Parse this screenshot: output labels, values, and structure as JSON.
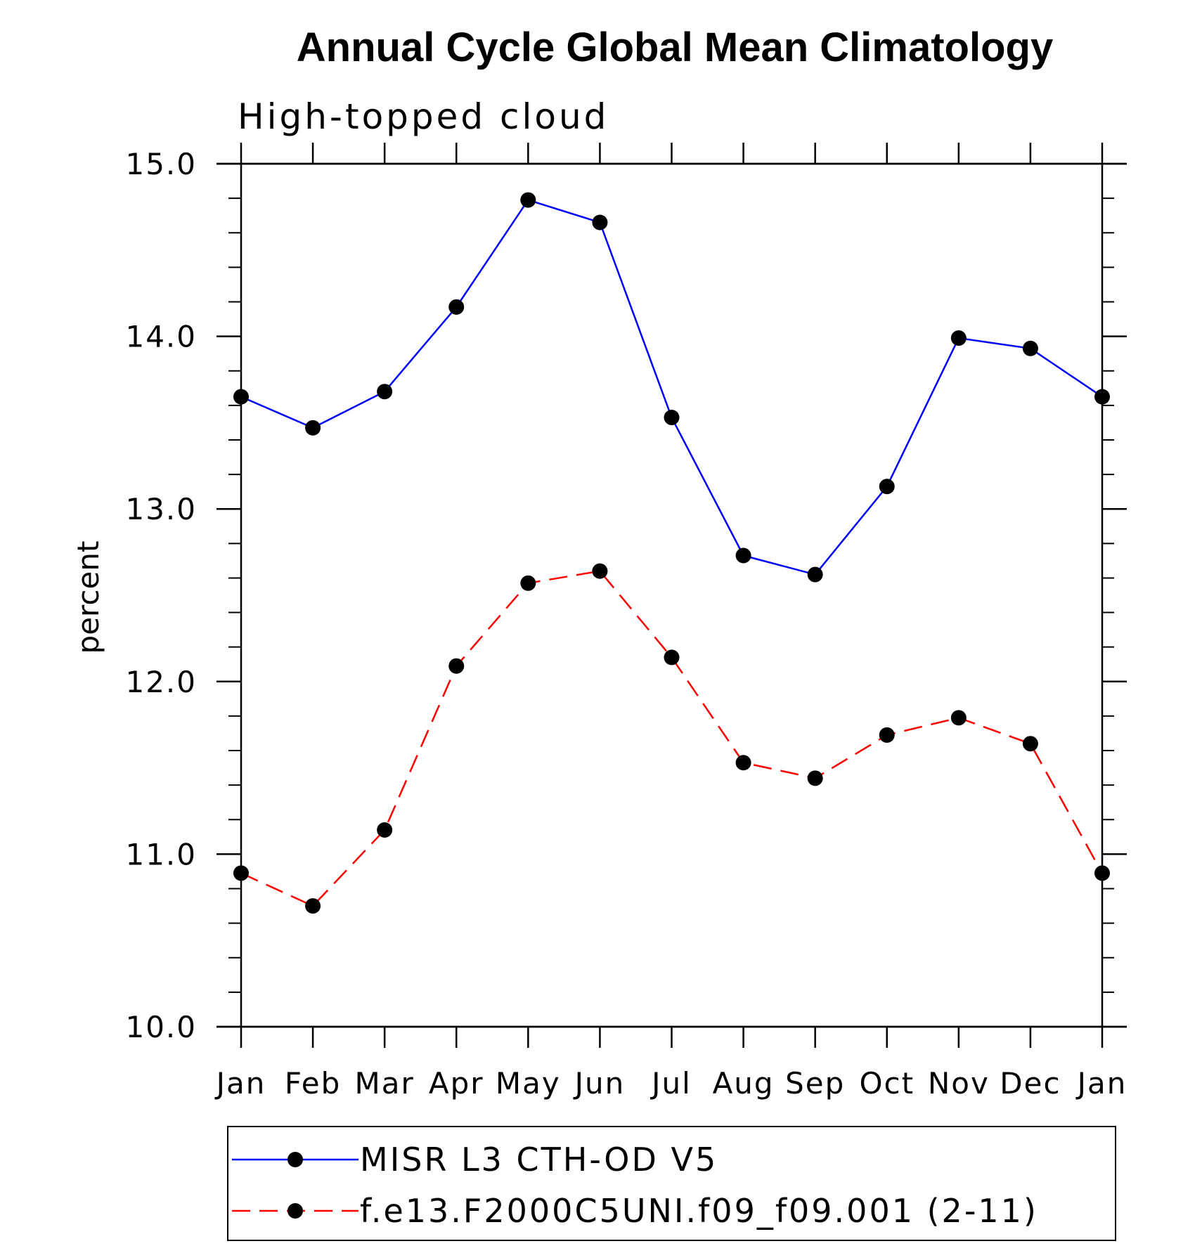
{
  "chart_data": {
    "type": "line",
    "title": "Annual Cycle Global Mean Climatology",
    "subtitle": "High-topped cloud",
    "ylabel": "percent",
    "xlabel": "",
    "ylim": [
      10.0,
      15.0
    ],
    "y_ticks": [
      "10.0",
      "11.0",
      "12.0",
      "13.0",
      "14.0",
      "15.0"
    ],
    "y_tick_values": [
      10,
      11,
      12,
      13,
      14,
      15
    ],
    "y_minor_step": 0.2,
    "categories": [
      "Jan",
      "Feb",
      "Mar",
      "Apr",
      "May",
      "Jun",
      "Jul",
      "Aug",
      "Sep",
      "Oct",
      "Nov",
      "Dec",
      "Jan"
    ],
    "grid": false,
    "legend_position": "bottom",
    "series": [
      {
        "name": "MISR L3 CTH-OD V5",
        "color": "#0000ff",
        "dash": "solid",
        "marker": "filled-circle",
        "values": [
          13.65,
          13.47,
          13.68,
          14.17,
          14.79,
          14.66,
          13.53,
          12.73,
          12.62,
          13.13,
          13.99,
          13.93,
          13.65
        ]
      },
      {
        "name": "f.e13.F2000C5UNI.f09_f09.001 (2-11)",
        "color": "#ff0000",
        "dash": "dashed",
        "marker": "filled-circle",
        "values": [
          10.89,
          10.7,
          11.14,
          12.09,
          12.57,
          12.64,
          12.14,
          11.53,
          11.44,
          11.69,
          11.79,
          11.64,
          10.89
        ]
      }
    ]
  }
}
